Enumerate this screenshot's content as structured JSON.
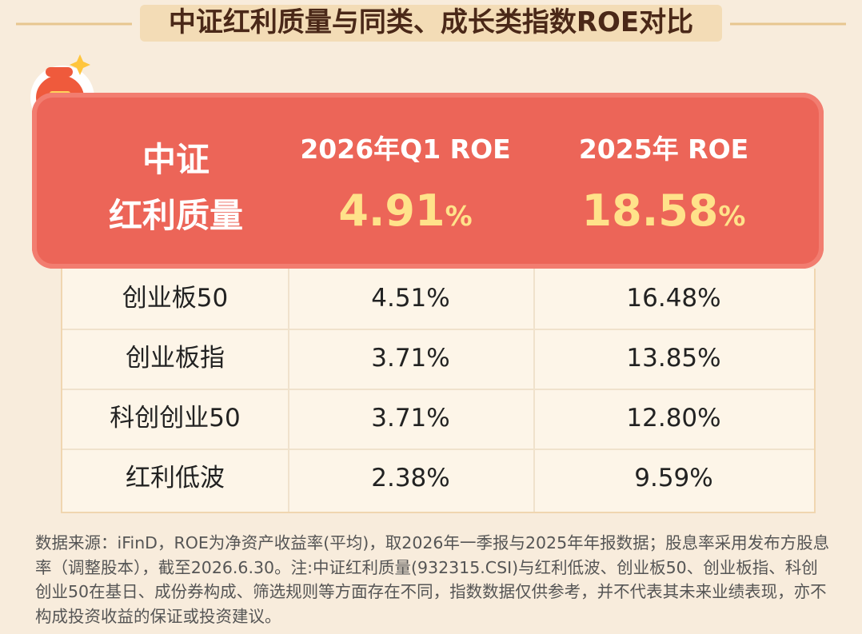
{
  "header": {
    "title": "中证红利质量与同类、成长类指数ROE对比"
  },
  "highlight": {
    "label_lines": [
      "中证",
      "红利质量"
    ],
    "columns": [
      "2026年Q1 ROE",
      "2025年 ROE"
    ],
    "values": [
      {
        "value": "4.91",
        "unit": "%"
      },
      {
        "value": "18.58",
        "unit": "%"
      }
    ]
  },
  "table": {
    "rows": [
      [
        "创业板50",
        "4.51%",
        "16.48%"
      ],
      [
        "创业板指",
        "3.71%",
        "13.85%"
      ],
      [
        "科创创业50",
        "3.71%",
        "12.80%"
      ],
      [
        "红利低波",
        "2.38%",
        "9.59%"
      ]
    ]
  },
  "footnote": "数据来源：iFinD，ROE为净资产收益率(平均)，取2026年一季报与2025年年报数据；股息率采用发布方股息率（调整股本），截至2026.6.30。注:中证红利质量(932315.CSI)与红利低波、创业板50、创业板指、科创创业50在基日、成份券构成、筛选规则等方面存在不同，指数数据仅供参考，并不代表其未来业绩表现，亦不构成投资收益的保证或投资建议。"
}
